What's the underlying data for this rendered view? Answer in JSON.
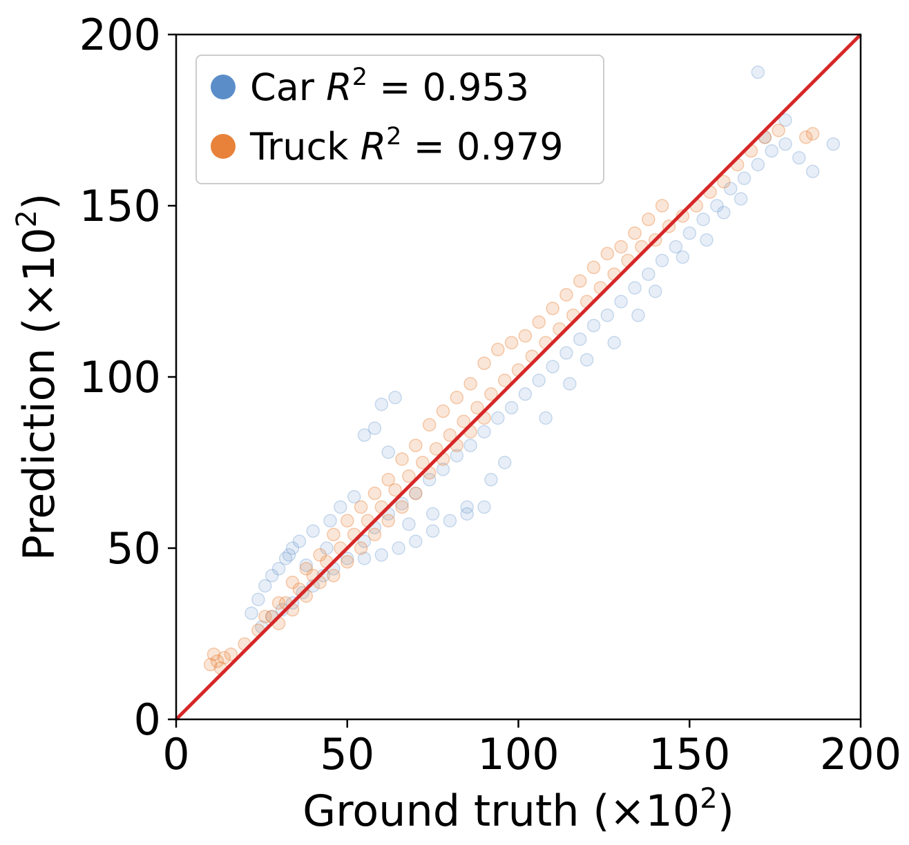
{
  "chart_data": {
    "type": "scatter",
    "xlabel": "Ground truth (×10²)",
    "ylabel": "Prediction (×10²)",
    "xlabel_parts": {
      "main": "Ground truth (×10",
      "sup": "2",
      "end": ")"
    },
    "ylabel_parts": {
      "main": "Prediction (×10",
      "sup": "2",
      "end": ")"
    },
    "xlim": [
      0,
      200
    ],
    "ylim": [
      0,
      200
    ],
    "x_ticks": [
      0,
      50,
      100,
      150,
      200
    ],
    "y_ticks": [
      0,
      50,
      100,
      150,
      200
    ],
    "x_tick_labels": [
      "0",
      "50",
      "100",
      "150",
      "200"
    ],
    "y_tick_labels": [
      "0",
      "50",
      "100",
      "150",
      "200"
    ],
    "grid": false,
    "legend_position": "top-left",
    "reference_line": {
      "from": [
        0,
        0
      ],
      "to": [
        200,
        200
      ],
      "color": "#d62728"
    },
    "series": [
      {
        "name": "Car",
        "legend": {
          "name": "Car",
          "stat": "R",
          "sup": "2",
          "value": " = 0.953"
        },
        "color": "#5b8ec9",
        "point_opacity": 0.15,
        "approx_points": [
          [
            22,
            31
          ],
          [
            24,
            35
          ],
          [
            26,
            39
          ],
          [
            28,
            42
          ],
          [
            30,
            44
          ],
          [
            32,
            47
          ],
          [
            34,
            50
          ],
          [
            36,
            52
          ],
          [
            25,
            27
          ],
          [
            28,
            30
          ],
          [
            31,
            32
          ],
          [
            34,
            34
          ],
          [
            37,
            37
          ],
          [
            40,
            39
          ],
          [
            43,
            42
          ],
          [
            46,
            44
          ],
          [
            50,
            47
          ],
          [
            55,
            47
          ],
          [
            60,
            48
          ],
          [
            65,
            50
          ],
          [
            70,
            52
          ],
          [
            75,
            55
          ],
          [
            80,
            58
          ],
          [
            85,
            60
          ],
          [
            90,
            62
          ],
          [
            55,
            52
          ],
          [
            58,
            56
          ],
          [
            62,
            60
          ],
          [
            66,
            63
          ],
          [
            70,
            66
          ],
          [
            74,
            70
          ],
          [
            78,
            73
          ],
          [
            82,
            77
          ],
          [
            86,
            80
          ],
          [
            90,
            84
          ],
          [
            94,
            88
          ],
          [
            98,
            91
          ],
          [
            102,
            95
          ],
          [
            106,
            99
          ],
          [
            110,
            103
          ],
          [
            114,
            107
          ],
          [
            118,
            111
          ],
          [
            122,
            115
          ],
          [
            126,
            118
          ],
          [
            130,
            122
          ],
          [
            134,
            126
          ],
          [
            138,
            130
          ],
          [
            142,
            134
          ],
          [
            146,
            138
          ],
          [
            150,
            142
          ],
          [
            154,
            146
          ],
          [
            158,
            150
          ],
          [
            162,
            155
          ],
          [
            166,
            158
          ],
          [
            170,
            162
          ],
          [
            174,
            166
          ],
          [
            178,
            168
          ],
          [
            182,
            164
          ],
          [
            186,
            160
          ],
          [
            192,
            168
          ],
          [
            170,
            189
          ],
          [
            55,
            83
          ],
          [
            58,
            85
          ],
          [
            60,
            92
          ],
          [
            64,
            94
          ],
          [
            62,
            78
          ],
          [
            68,
            57
          ],
          [
            75,
            60
          ],
          [
            85,
            62
          ],
          [
            92,
            70
          ],
          [
            96,
            75
          ],
          [
            108,
            88
          ],
          [
            115,
            98
          ],
          [
            120,
            105
          ],
          [
            128,
            110
          ],
          [
            135,
            118
          ],
          [
            140,
            125
          ],
          [
            148,
            135
          ],
          [
            155,
            140
          ],
          [
            160,
            148
          ],
          [
            165,
            152
          ],
          [
            172,
            170
          ],
          [
            178,
            175
          ],
          [
            40,
            55
          ],
          [
            45,
            58
          ],
          [
            48,
            62
          ],
          [
            52,
            65
          ],
          [
            44,
            50
          ],
          [
            38,
            45
          ],
          [
            33,
            48
          ]
        ]
      },
      {
        "name": "Truck",
        "legend": {
          "name": "Truck",
          "stat": "R",
          "sup": "2",
          "value": " = 0.979"
        },
        "color": "#e8823a",
        "point_opacity": 0.2,
        "approx_points": [
          [
            10,
            16
          ],
          [
            12,
            17
          ],
          [
            14,
            18
          ],
          [
            16,
            19
          ],
          [
            11,
            19
          ],
          [
            13,
            15
          ],
          [
            20,
            22
          ],
          [
            24,
            26
          ],
          [
            28,
            30
          ],
          [
            32,
            34
          ],
          [
            36,
            38
          ],
          [
            40,
            42
          ],
          [
            44,
            46
          ],
          [
            48,
            50
          ],
          [
            52,
            54
          ],
          [
            56,
            58
          ],
          [
            60,
            62
          ],
          [
            64,
            67
          ],
          [
            68,
            71
          ],
          [
            72,
            75
          ],
          [
            76,
            79
          ],
          [
            80,
            83
          ],
          [
            84,
            87
          ],
          [
            88,
            91
          ],
          [
            92,
            95
          ],
          [
            96,
            99
          ],
          [
            100,
            102
          ],
          [
            104,
            106
          ],
          [
            108,
            110
          ],
          [
            112,
            114
          ],
          [
            116,
            118
          ],
          [
            120,
            122
          ],
          [
            124,
            126
          ],
          [
            128,
            130
          ],
          [
            132,
            134
          ],
          [
            136,
            138
          ],
          [
            140,
            140
          ],
          [
            144,
            144
          ],
          [
            148,
            147
          ],
          [
            152,
            150
          ],
          [
            156,
            154
          ],
          [
            160,
            157
          ],
          [
            164,
            162
          ],
          [
            168,
            166
          ],
          [
            172,
            170
          ],
          [
            176,
            172
          ],
          [
            184,
            170
          ],
          [
            186,
            171
          ],
          [
            26,
            30
          ],
          [
            30,
            34
          ],
          [
            34,
            40
          ],
          [
            38,
            44
          ],
          [
            42,
            48
          ],
          [
            46,
            54
          ],
          [
            50,
            58
          ],
          [
            54,
            62
          ],
          [
            58,
            66
          ],
          [
            62,
            70
          ],
          [
            66,
            76
          ],
          [
            70,
            80
          ],
          [
            74,
            86
          ],
          [
            78,
            90
          ],
          [
            82,
            94
          ],
          [
            86,
            98
          ],
          [
            90,
            104
          ],
          [
            94,
            108
          ],
          [
            98,
            110
          ],
          [
            102,
            112
          ],
          [
            106,
            116
          ],
          [
            110,
            120
          ],
          [
            114,
            124
          ],
          [
            118,
            128
          ],
          [
            122,
            132
          ],
          [
            126,
            136
          ],
          [
            130,
            138
          ],
          [
            134,
            142
          ],
          [
            138,
            146
          ],
          [
            142,
            150
          ],
          [
            30,
            28
          ],
          [
            34,
            32
          ],
          [
            38,
            36
          ],
          [
            42,
            40
          ],
          [
            46,
            42
          ],
          [
            50,
            46
          ],
          [
            54,
            50
          ],
          [
            58,
            54
          ],
          [
            62,
            58
          ],
          [
            66,
            62
          ],
          [
            70,
            66
          ],
          [
            74,
            72
          ],
          [
            78,
            76
          ],
          [
            82,
            80
          ],
          [
            86,
            84
          ],
          [
            90,
            88
          ]
        ]
      }
    ]
  }
}
